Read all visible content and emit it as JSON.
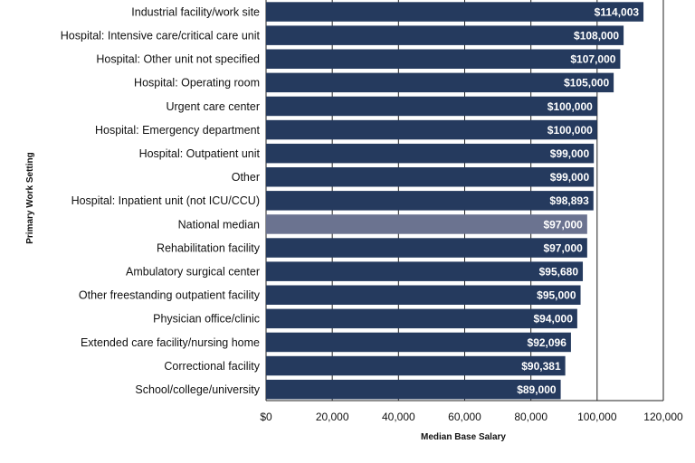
{
  "chart_data": {
    "type": "bar",
    "orientation": "horizontal",
    "xlabel": "Median Base Salary",
    "ylabel": "Primary Work Setting",
    "xlim": [
      0,
      120000
    ],
    "grid": true,
    "legend": "none",
    "categories": [
      "Industrial facility/work site",
      "Hospital: Intensive care/critical care unit",
      "Hospital: Other unit not specified",
      "Hospital: Operating room",
      "Urgent care center",
      "Hospital: Emergency department",
      "Hospital: Outpatient unit",
      "Other",
      "Hospital: Inpatient unit (not ICU/CCU)",
      "National median",
      "Rehabilitation facility",
      "Ambulatory surgical center",
      "Other freestanding outpatient facility",
      "Physician office/clinic",
      "Extended care facility/nursing home",
      "Correctional facility",
      "School/college/university"
    ],
    "values": [
      114003,
      108000,
      107000,
      105000,
      100000,
      100000,
      99000,
      99000,
      98893,
      97000,
      97000,
      95680,
      95000,
      94000,
      92096,
      90381,
      89000
    ],
    "value_labels": [
      "$114,003",
      "$108,000",
      "$107,000",
      "$105,000",
      "$100,000",
      "$100,000",
      "$99,000",
      "$99,000",
      "$98,893",
      "$97,000",
      "$97,000",
      "$95,680",
      "$95,000",
      "$94,000",
      "$92,096",
      "$90,381",
      "$89,000"
    ],
    "highlight_category": "National median",
    "x_ticks": [
      0,
      20000,
      40000,
      60000,
      80000,
      100000,
      120000
    ],
    "x_tick_labels": [
      "$0",
      "20,000",
      "40,000",
      "60,000",
      "80,000",
      "100,000",
      "120,000"
    ],
    "colors": {
      "bar": "#253a5e",
      "highlight_bar": "#6b7390",
      "bar_text": "#ffffff",
      "gridline": "#222222",
      "text": "#111111"
    }
  }
}
